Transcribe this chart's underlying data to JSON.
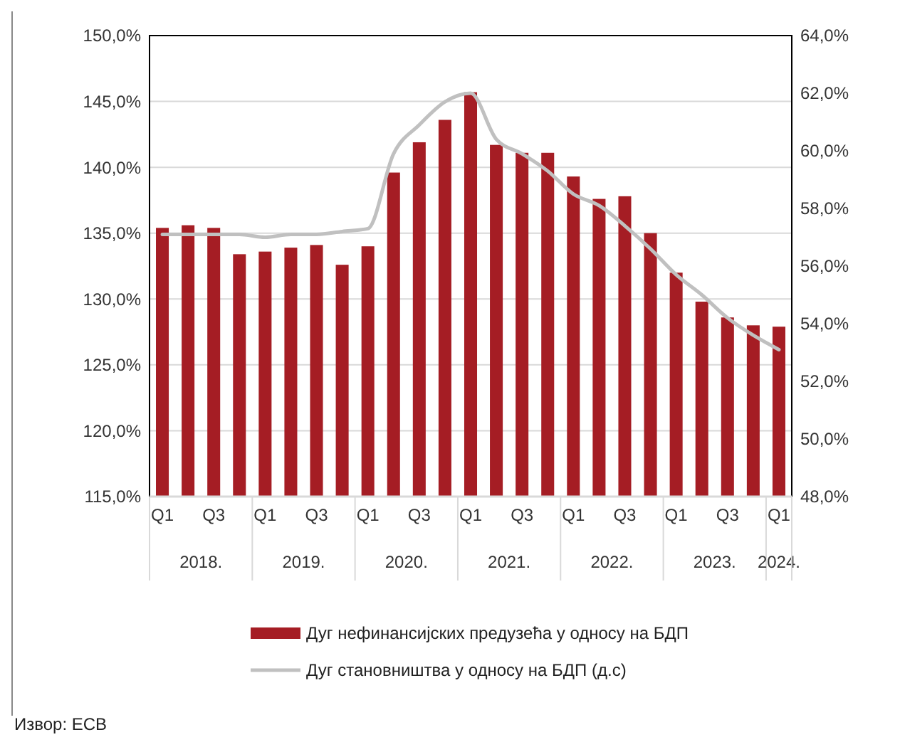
{
  "chart_data": {
    "type": "bar",
    "categories": [
      "Q1",
      null,
      "Q3",
      null,
      "Q1",
      null,
      "Q3",
      null,
      "Q1",
      null,
      "Q3",
      null,
      "Q1",
      null,
      "Q3",
      null,
      "Q1",
      null,
      "Q3",
      null,
      "Q1",
      null,
      "Q3",
      null,
      "Q1"
    ],
    "series": [
      {
        "name": "Дуг нефинансијских предузећа у односу на БДП",
        "color": "#a51d24",
        "values": [
          135.4,
          135.6,
          135.4,
          133.4,
          133.6,
          133.9,
          134.1,
          132.6,
          134.0,
          139.6,
          141.9,
          143.6,
          145.7,
          141.7,
          141.1,
          141.1,
          139.3,
          137.6,
          137.8,
          135.0,
          132.0,
          129.8,
          128.6,
          128.0,
          127.9
        ]
      },
      {
        "name": "Дуг становништва у односу на БДП (д.с)",
        "type": "line",
        "axis": "y2",
        "color": "#c0c0c0",
        "values": [
          57.1,
          57.1,
          57.1,
          57.1,
          57.0,
          57.1,
          57.1,
          57.2,
          57.3,
          59.9,
          60.9,
          61.7,
          62.0,
          60.4,
          59.9,
          59.3,
          58.5,
          58.1,
          57.4,
          56.6,
          55.7,
          55.0,
          54.2,
          53.6,
          53.1
        ]
      }
    ],
    "ylim": [
      115,
      150
    ],
    "yticks": [
      {
        "value": 115,
        "label": "115,0%"
      },
      {
        "value": 120,
        "label": "120,0%"
      },
      {
        "value": 125,
        "label": "125,0%"
      },
      {
        "value": 130,
        "label": "130,0%"
      },
      {
        "value": 135,
        "label": "135,0%"
      },
      {
        "value": 140,
        "label": "140,0%"
      },
      {
        "value": 145,
        "label": "145,0%"
      },
      {
        "value": 150,
        "label": "150,0%"
      }
    ],
    "y2lim": [
      48,
      64
    ],
    "y2ticks": [
      {
        "value": 48,
        "label": "48,0%"
      },
      {
        "value": 50,
        "label": "50,0%"
      },
      {
        "value": 52,
        "label": "52,0%"
      },
      {
        "value": 54,
        "label": "54,0%"
      },
      {
        "value": 56,
        "label": "56,0%"
      },
      {
        "value": 58,
        "label": "58,0%"
      },
      {
        "value": 60,
        "label": "60,0%"
      },
      {
        "value": 62,
        "label": "62,0%"
      },
      {
        "value": 64,
        "label": "64,0%"
      }
    ],
    "grid": "y",
    "legend": "bottom",
    "annotations": [
      "2018.",
      "2019.",
      "2020.",
      "2021.",
      "2022.",
      "2023.",
      "2024.",
      "Извор: ECB"
    ]
  }
}
